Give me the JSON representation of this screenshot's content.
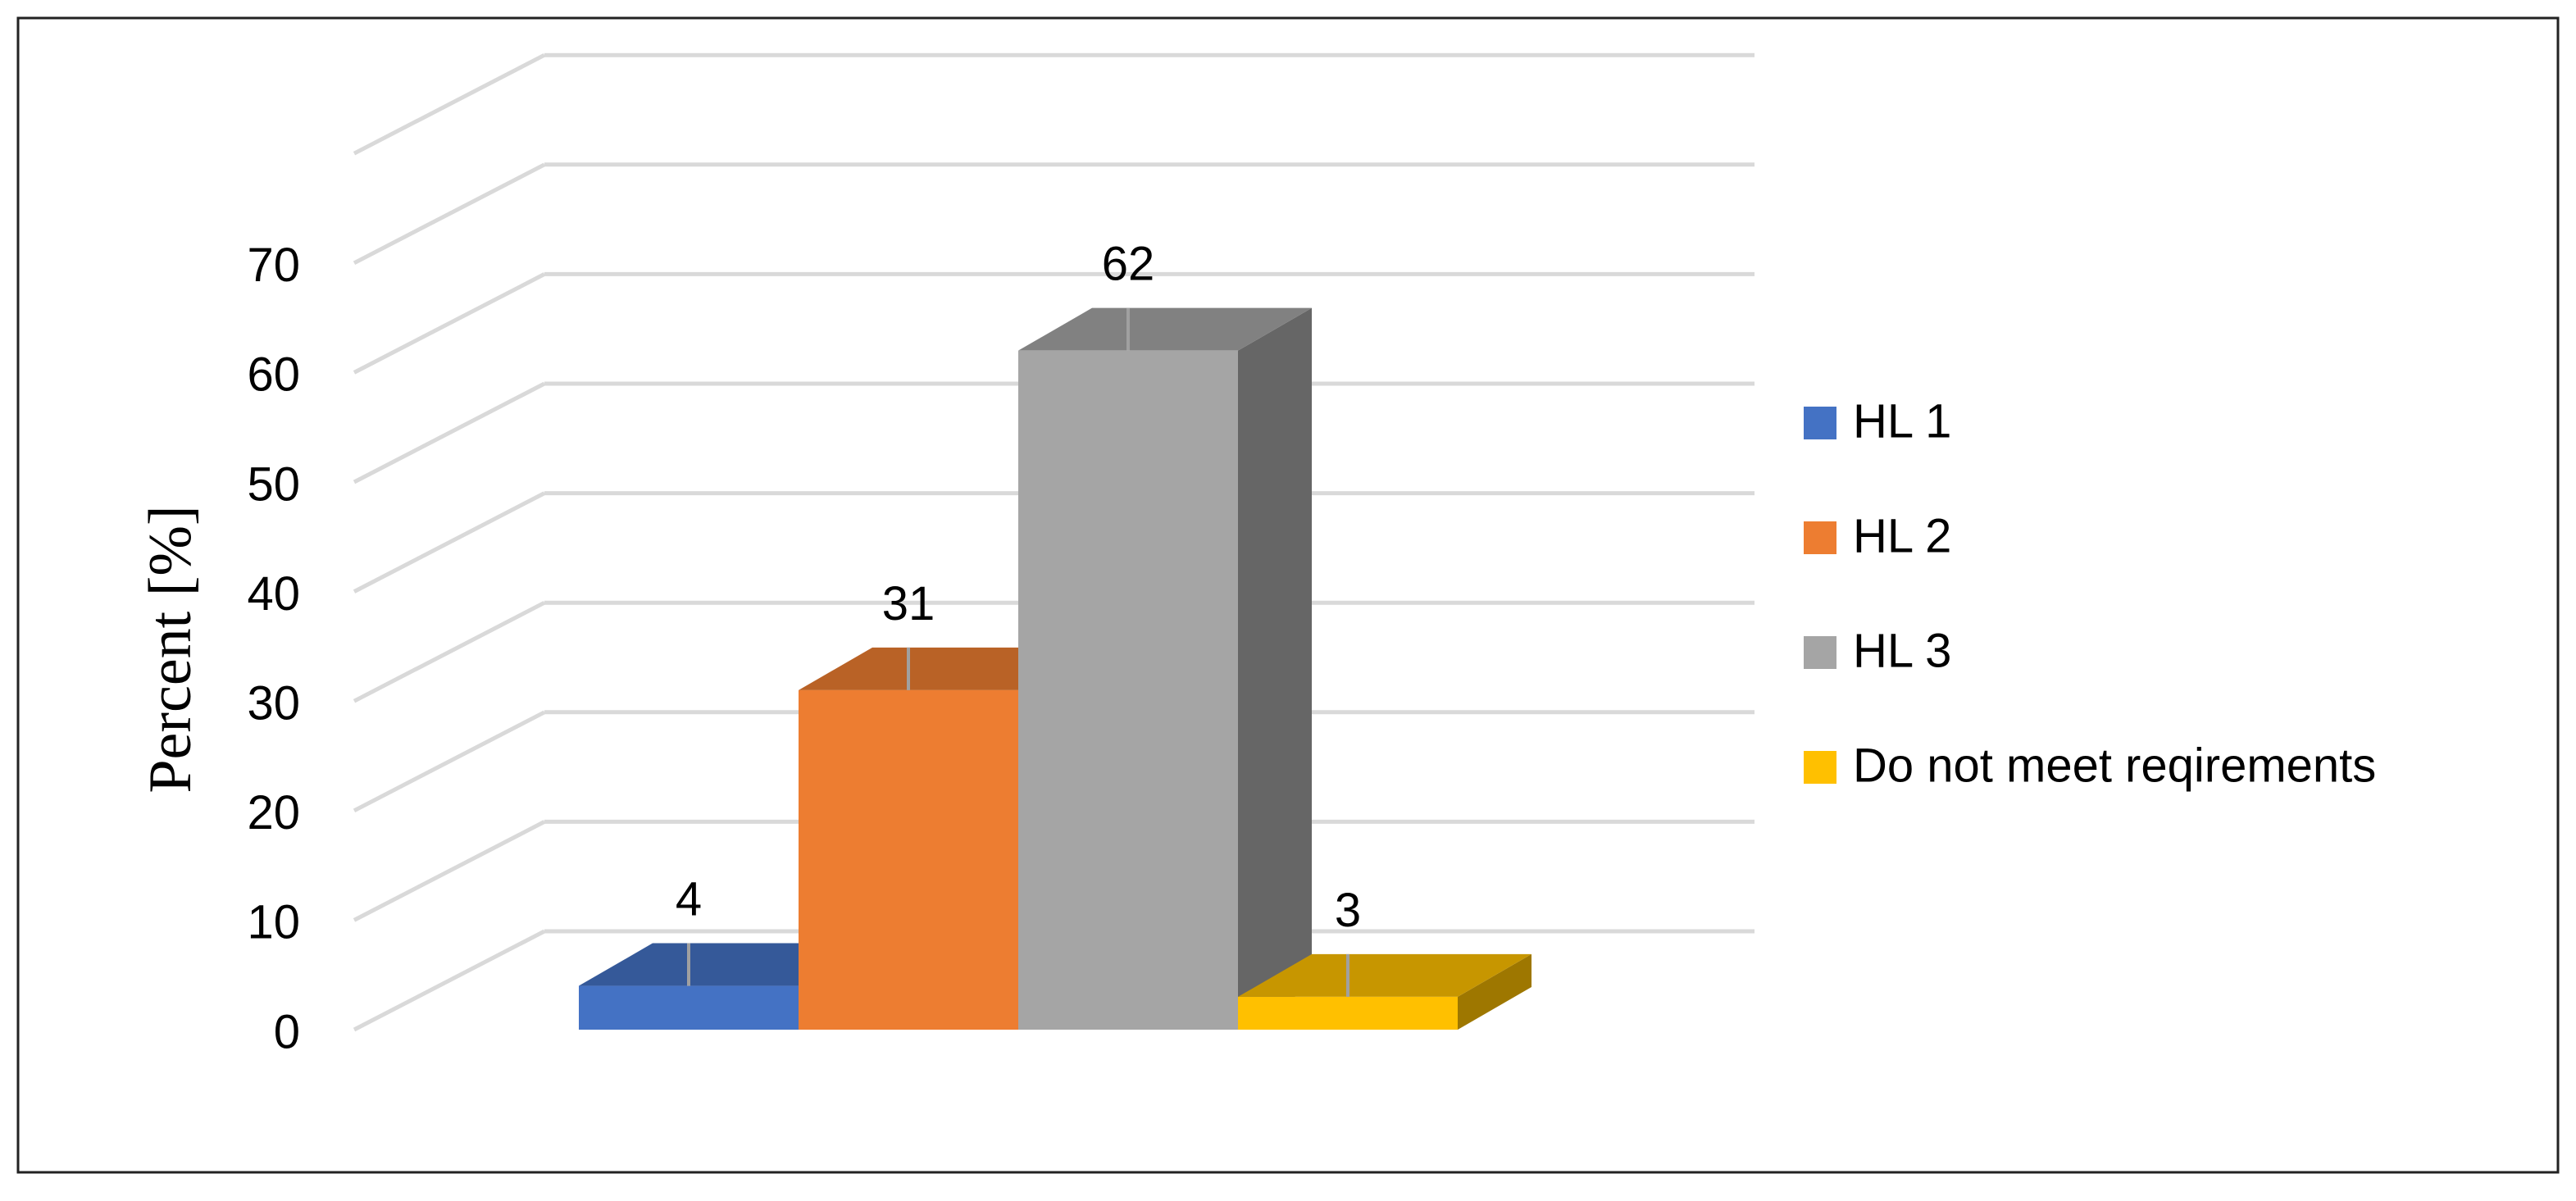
{
  "chart_data": {
    "type": "bar",
    "title": "",
    "xlabel": "",
    "ylabel": "Percent [%]",
    "ylim": [
      0,
      70
    ],
    "yticks": [
      0,
      10,
      20,
      30,
      40,
      50,
      60,
      70
    ],
    "grid": true,
    "legend_position": "right",
    "series": [
      {
        "name": "HL 1",
        "value": 4,
        "color": "#4472C4"
      },
      {
        "name": "HL 2",
        "value": 31,
        "color": "#ED7D31"
      },
      {
        "name": "HL 3",
        "value": 62,
        "color": "#A5A5A5"
      },
      {
        "name": "Do not meet reqirements",
        "value": 3,
        "color": "#FFC000"
      }
    ]
  }
}
